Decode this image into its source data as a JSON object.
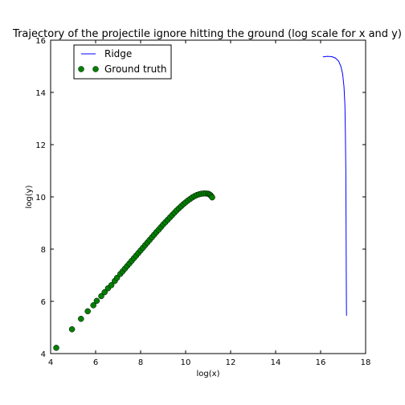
{
  "chart_data": {
    "type": "line",
    "title": "Trajectory of the projectile ignore hitting the ground (log scale for x and y)",
    "xlabel": "log(x)",
    "ylabel": "log(y)",
    "xlim": [
      4,
      18
    ],
    "ylim": [
      4,
      16
    ],
    "xticks": [
      "4",
      "6",
      "8",
      "10",
      "12",
      "14",
      "16",
      "18"
    ],
    "yticks": [
      "4",
      "6",
      "8",
      "10",
      "12",
      "14",
      "16"
    ],
    "grid": false,
    "legend_position": "top-left",
    "series": [
      {
        "name": "Ridge",
        "style": "line",
        "color": "#0000ff",
        "points": [
          [
            16.1,
            15.36
          ],
          [
            16.3,
            15.38
          ],
          [
            16.5,
            15.37
          ],
          [
            16.65,
            15.32
          ],
          [
            16.8,
            15.2
          ],
          [
            16.9,
            15.0
          ],
          [
            16.98,
            14.7
          ],
          [
            17.04,
            14.2
          ],
          [
            17.08,
            13.5
          ],
          [
            17.1,
            12.5
          ],
          [
            17.12,
            11.0
          ],
          [
            17.13,
            9.0
          ],
          [
            17.14,
            7.0
          ],
          [
            17.15,
            5.45
          ]
        ]
      },
      {
        "name": "Ground truth",
        "style": "markers",
        "color": "#008000",
        "points": [
          [
            4.25,
            4.22
          ],
          [
            4.95,
            4.93
          ],
          [
            5.35,
            5.33
          ],
          [
            5.65,
            5.62
          ],
          [
            5.9,
            5.85
          ],
          [
            6.05,
            6.02
          ],
          [
            6.25,
            6.2
          ],
          [
            6.4,
            6.35
          ],
          [
            6.55,
            6.5
          ],
          [
            6.7,
            6.62
          ],
          [
            6.85,
            6.78
          ],
          [
            6.95,
            6.9
          ],
          [
            7.1,
            7.05
          ],
          [
            7.2,
            7.15
          ],
          [
            7.3,
            7.25
          ],
          [
            7.4,
            7.35
          ],
          [
            7.5,
            7.45
          ],
          [
            7.6,
            7.55
          ],
          [
            7.7,
            7.65
          ],
          [
            7.8,
            7.75
          ],
          [
            7.9,
            7.85
          ],
          [
            8.0,
            7.95
          ],
          [
            8.1,
            8.05
          ],
          [
            8.2,
            8.15
          ],
          [
            8.3,
            8.25
          ],
          [
            8.4,
            8.35
          ],
          [
            8.5,
            8.45
          ],
          [
            8.6,
            8.55
          ],
          [
            8.7,
            8.65
          ],
          [
            8.8,
            8.74
          ],
          [
            8.9,
            8.84
          ],
          [
            9.0,
            8.94
          ],
          [
            9.1,
            9.03
          ],
          [
            9.2,
            9.12
          ],
          [
            9.3,
            9.21
          ],
          [
            9.4,
            9.3
          ],
          [
            9.5,
            9.39
          ],
          [
            9.6,
            9.48
          ],
          [
            9.7,
            9.56
          ],
          [
            9.8,
            9.64
          ],
          [
            9.9,
            9.72
          ],
          [
            10.0,
            9.79
          ],
          [
            10.1,
            9.86
          ],
          [
            10.2,
            9.92
          ],
          [
            10.3,
            9.98
          ],
          [
            10.4,
            10.03
          ],
          [
            10.5,
            10.07
          ],
          [
            10.6,
            10.1
          ],
          [
            10.7,
            10.12
          ],
          [
            10.8,
            10.13
          ],
          [
            10.9,
            10.13
          ],
          [
            11.0,
            10.12
          ],
          [
            11.05,
            10.1
          ],
          [
            11.1,
            10.07
          ],
          [
            11.15,
            10.02
          ],
          [
            11.18,
            9.98
          ]
        ]
      }
    ]
  }
}
